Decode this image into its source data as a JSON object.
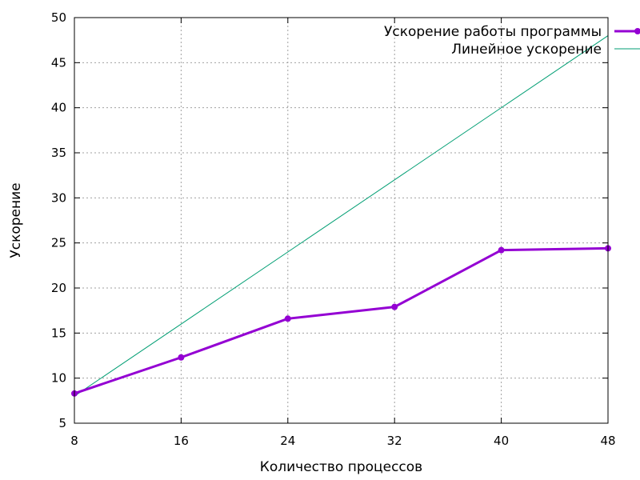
{
  "chart_data": {
    "type": "line",
    "title": "",
    "xlabel": "Количество процессов",
    "ylabel": "Ускорение",
    "xlim": [
      8,
      48
    ],
    "ylim": [
      5,
      50
    ],
    "x_ticks": [
      8,
      16,
      24,
      32,
      40,
      48
    ],
    "y_ticks": [
      5,
      10,
      15,
      20,
      25,
      30,
      35,
      40,
      45,
      50
    ],
    "grid": true,
    "legend_position": "top-right",
    "series": [
      {
        "name": "Ускорение работы программы",
        "color": "#9400d3",
        "marker": "circle",
        "x": [
          8,
          16,
          24,
          32,
          40,
          48
        ],
        "y": [
          8.3,
          12.3,
          16.6,
          17.9,
          24.2,
          24.4
        ]
      },
      {
        "name": "Линейное ускорение",
        "color": "#009e73",
        "marker": "none",
        "x": [
          8,
          48
        ],
        "y": [
          8,
          48
        ]
      }
    ]
  }
}
